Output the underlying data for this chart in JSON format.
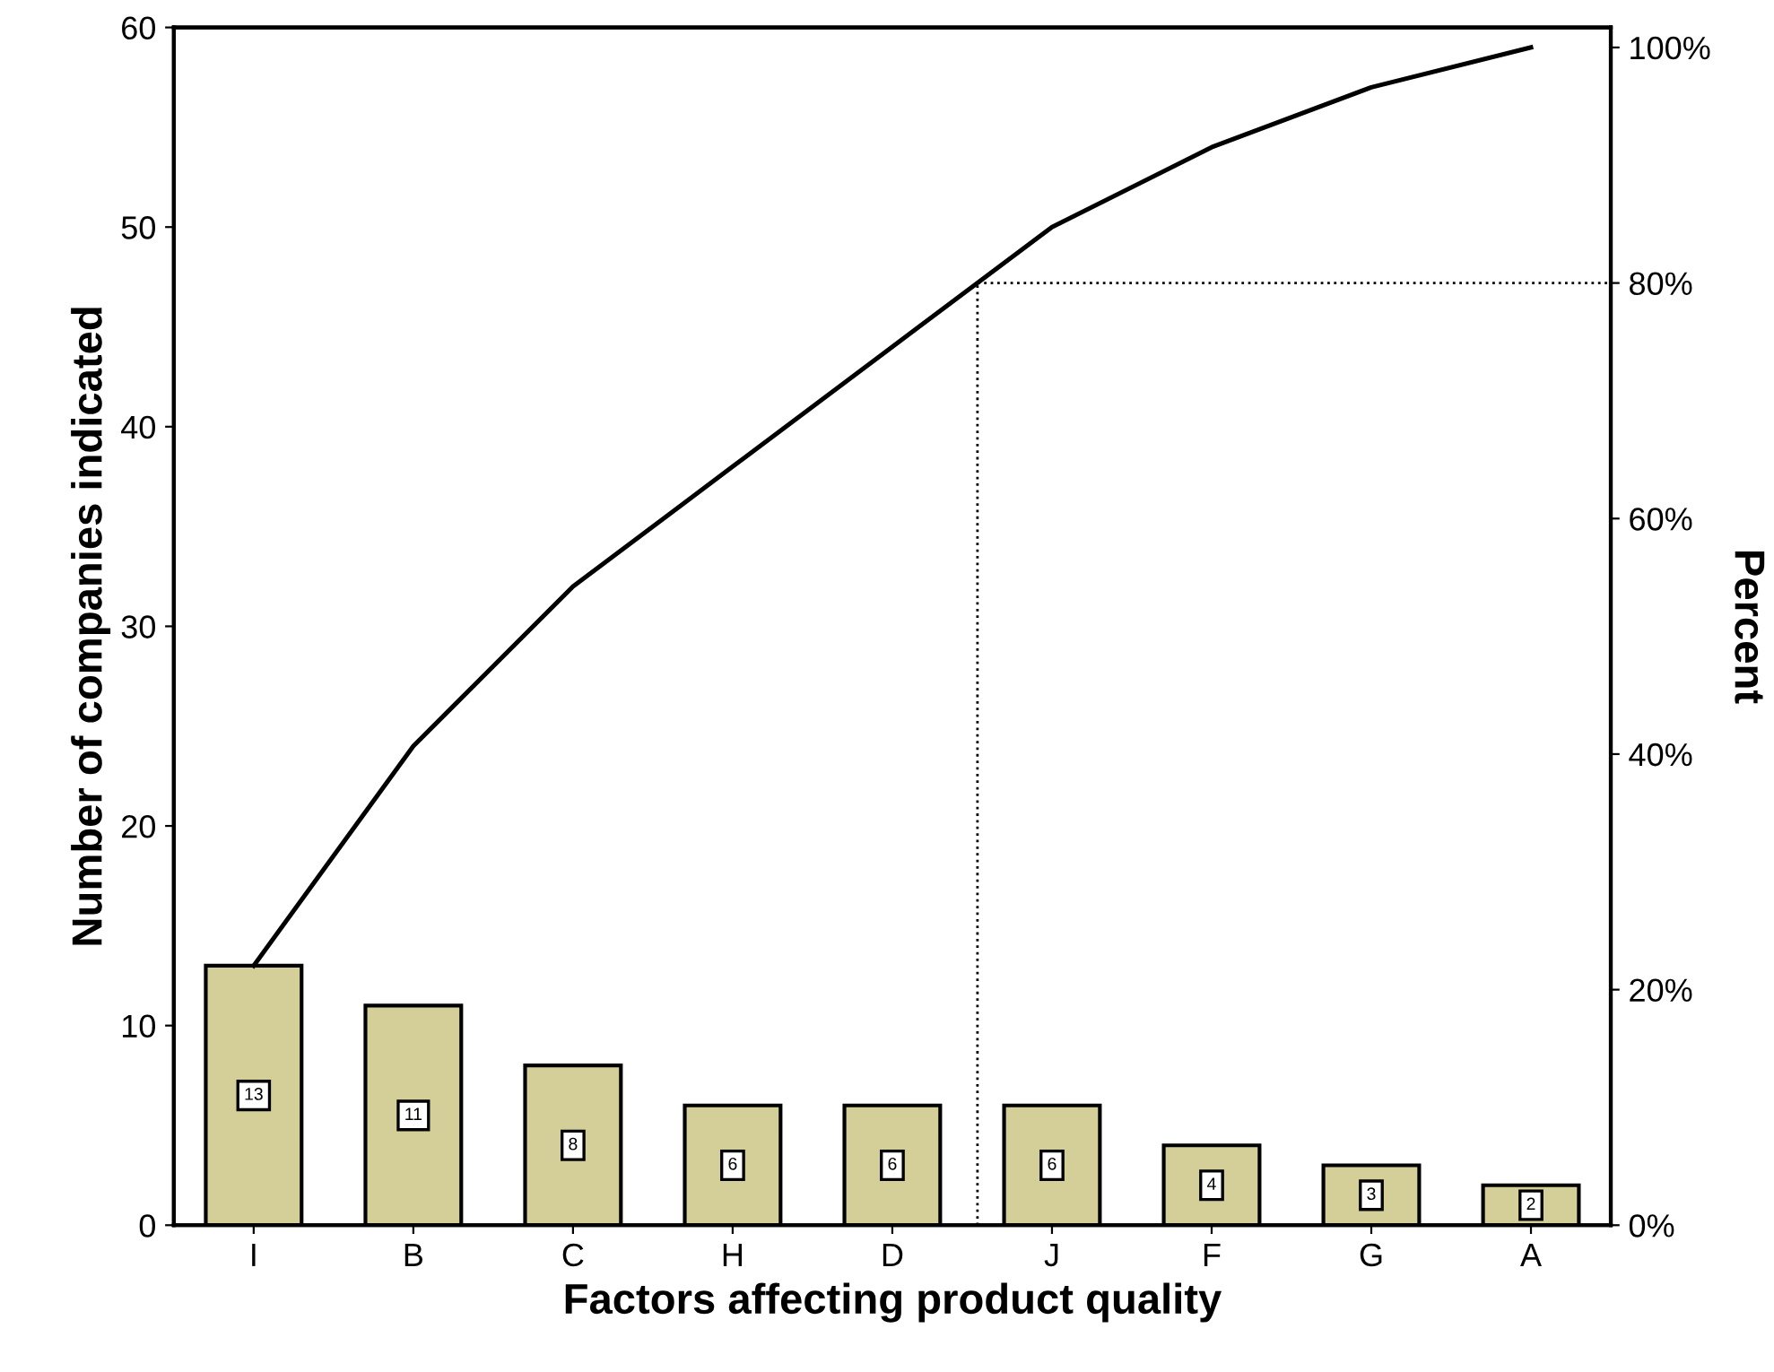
{
  "chart_data": {
    "type": "bar",
    "xlabel": "Factors affecting product quality",
    "ylabel": "Number of companies indicated",
    "y2label": "Percent",
    "categories": [
      "I",
      "B",
      "C",
      "H",
      "D",
      "J",
      "F",
      "G",
      "A"
    ],
    "series": [
      {
        "color": "#d4cf99",
        "values": [
          13,
          11,
          8,
          6,
          6,
          6,
          4,
          3,
          2
        ],
        "value_labels": [
          "13",
          "11",
          "8",
          "6",
          "6",
          "6",
          "4",
          "3",
          "2"
        ]
      },
      {
        "type": "line",
        "color": "#000000",
        "values": [
          13,
          24,
          32,
          38,
          44,
          50,
          54,
          57,
          59
        ]
      }
    ],
    "ylim": [
      0,
      60
    ],
    "yticks": [
      0,
      10,
      20,
      30,
      40,
      50,
      60
    ],
    "y2lim": [
      0,
      101.7
    ],
    "y2ticks": [
      {
        "value": 0,
        "label": "0%"
      },
      {
        "value": 20,
        "label": "20%"
      },
      {
        "value": 40,
        "label": "40%"
      },
      {
        "value": 60,
        "label": "60%"
      },
      {
        "value": 80,
        "label": "80%"
      },
      {
        "value": 100,
        "label": "100%"
      }
    ],
    "ref_lines": [
      {
        "axis": "y2",
        "value": 80,
        "line_style": "dotted",
        "color": "#000000"
      }
    ],
    "grid": false,
    "legend": false,
    "marker": "none",
    "line_style": "solid"
  }
}
